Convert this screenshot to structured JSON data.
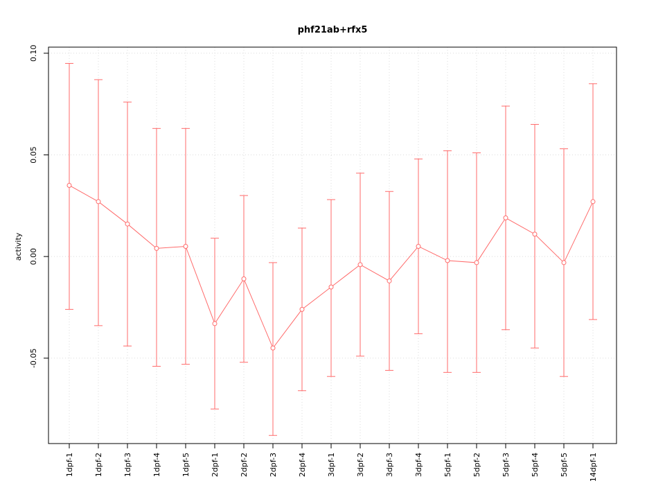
{
  "title": "phf21ab+rfx5",
  "chart_data": {
    "type": "line",
    "title": "phf21ab+rfx5",
    "xlabel": "",
    "ylabel": "activity",
    "categories": [
      "1dpf-1",
      "1dpf-2",
      "1dpf-3",
      "1dpf-4",
      "1dpf-5",
      "2dpf-1",
      "2dpf-2",
      "2dpf-3",
      "2dpf-4",
      "3dpf-1",
      "3dpf-2",
      "3dpf-3",
      "3dpf-4",
      "5dpf-1",
      "5dpf-2",
      "5dpf-3",
      "5dpf-4",
      "5dpf-5",
      "14dpf-1"
    ],
    "series": [
      {
        "name": "activity",
        "values": [
          0.035,
          0.027,
          0.016,
          0.004,
          0.005,
          -0.033,
          -0.011,
          -0.045,
          -0.026,
          -0.015,
          -0.004,
          -0.012,
          0.005,
          -0.002,
          -0.003,
          0.019,
          0.011,
          -0.003,
          0.027
        ],
        "upper": [
          0.095,
          0.087,
          0.076,
          0.063,
          0.063,
          0.009,
          0.03,
          -0.003,
          0.014,
          0.028,
          0.041,
          0.032,
          0.048,
          0.052,
          0.051,
          0.074,
          0.065,
          0.053,
          0.085
        ],
        "lower": [
          -0.026,
          -0.034,
          -0.044,
          -0.054,
          -0.053,
          -0.075,
          -0.052,
          -0.088,
          -0.066,
          -0.059,
          -0.049,
          -0.056,
          -0.038,
          -0.057,
          -0.057,
          -0.036,
          -0.045,
          -0.059,
          -0.031
        ]
      }
    ],
    "yticks": [
      -0.05,
      0.0,
      0.05,
      0.1
    ],
    "ytick_labels": [
      "-0.05",
      "0.00",
      "0.05",
      "0.10"
    ],
    "ylim": [
      -0.092,
      0.103
    ],
    "grid": true,
    "legend_position": "none",
    "marker": "open-circle",
    "error_bars": true,
    "colors": {
      "series": "#FF6A6A",
      "axis": "#000000",
      "grid": "#DBDBDB",
      "background": "#FFFFFF"
    }
  }
}
